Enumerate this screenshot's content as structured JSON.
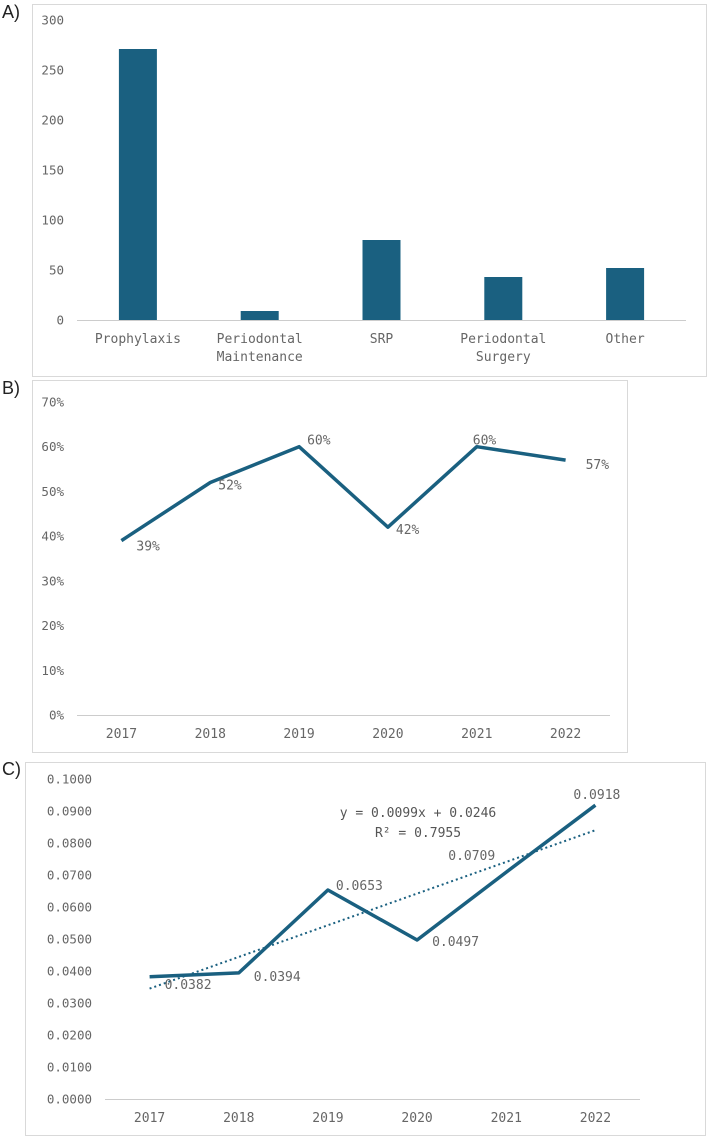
{
  "colors": {
    "series": "#1a6080",
    "axis": "#cccccc",
    "text": "#666666",
    "frame": "#d9d9d9"
  },
  "chart_data": [
    {
      "panel": "A)",
      "type": "bar",
      "categories": [
        [
          "Prophylaxis"
        ],
        [
          "Periodontal",
          "Maintenance"
        ],
        [
          "SRP"
        ],
        [
          "Periodontal",
          "Surgery"
        ],
        [
          "Other"
        ]
      ],
      "values": [
        271,
        9,
        80,
        43,
        52
      ],
      "ylim": [
        0,
        300
      ],
      "yticks": [
        "0",
        "50",
        "100",
        "150",
        "200",
        "250",
        "300"
      ],
      "grid": false
    },
    {
      "panel": "B)",
      "type": "line",
      "x": [
        "2017",
        "2018",
        "2019",
        "2020",
        "2021",
        "2022"
      ],
      "values": [
        0.39,
        0.52,
        0.6,
        0.42,
        0.6,
        0.57
      ],
      "data_labels": [
        "39%",
        "52%",
        "60%",
        "42%",
        "60%",
        "57%"
      ],
      "ylim": [
        0,
        0.7
      ],
      "yticks": [
        "0%",
        "10%",
        "20%",
        "30%",
        "40%",
        "50%",
        "60%",
        "70%"
      ],
      "grid": false
    },
    {
      "panel": "C)",
      "type": "line",
      "x": [
        "2017",
        "2018",
        "2019",
        "2020",
        "2021",
        "2022"
      ],
      "values": [
        0.0382,
        0.0394,
        0.0653,
        0.0497,
        0.0709,
        0.0918
      ],
      "data_labels": [
        "0.0382",
        "0.0394",
        "0.0653",
        "0.0497",
        "0.0709",
        "0.0918"
      ],
      "ylim": [
        0,
        0.1
      ],
      "yticks": [
        "0.0000",
        "0.0100",
        "0.0200",
        "0.0300",
        "0.0400",
        "0.0500",
        "0.0600",
        "0.0700",
        "0.0800",
        "0.0900",
        "0.1000"
      ],
      "trendline": {
        "type": "linear",
        "slope": 0.0099,
        "intercept": 0.0246,
        "equation": "y = 0.0099x + 0.0246",
        "r2": "R² = 0.7955"
      },
      "grid": false
    }
  ]
}
